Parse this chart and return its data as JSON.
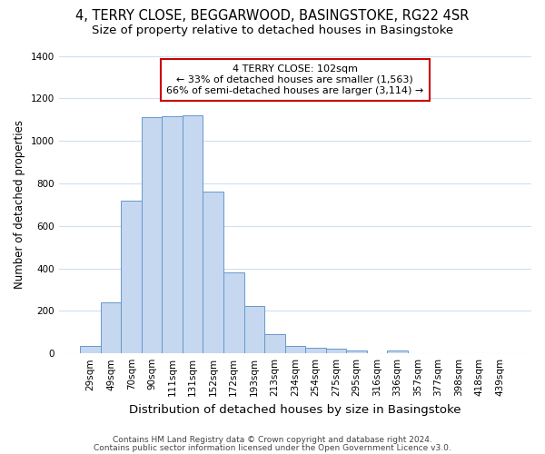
{
  "title1": "4, TERRY CLOSE, BEGGARWOOD, BASINGSTOKE, RG22 4SR",
  "title2": "Size of property relative to detached houses in Basingstoke",
  "xlabel": "Distribution of detached houses by size in Basingstoke",
  "ylabel": "Number of detached properties",
  "footnote1": "Contains HM Land Registry data © Crown copyright and database right 2024.",
  "footnote2": "Contains public sector information licensed under the Open Government Licence v3.0.",
  "annotation_line1": "4 TERRY CLOSE: 102sqm",
  "annotation_line2": "← 33% of detached houses are smaller (1,563)",
  "annotation_line3": "66% of semi-detached houses are larger (3,114) →",
  "bar_color": "#c5d8f0",
  "bar_edge_color": "#6699cc",
  "background_color": "#ffffff",
  "annotation_box_color": "#ffffff",
  "annotation_box_edge": "#cc0000",
  "grid_color": "#d0ddf0",
  "categories": [
    "29sqm",
    "49sqm",
    "70sqm",
    "90sqm",
    "111sqm",
    "131sqm",
    "152sqm",
    "172sqm",
    "193sqm",
    "213sqm",
    "234sqm",
    "254sqm",
    "275sqm",
    "295sqm",
    "316sqm",
    "336sqm",
    "357sqm",
    "377sqm",
    "398sqm",
    "418sqm",
    "439sqm"
  ],
  "values": [
    35,
    240,
    720,
    1110,
    1115,
    1120,
    760,
    380,
    225,
    90,
    37,
    27,
    22,
    14,
    2,
    12,
    0,
    0,
    0,
    0,
    0
  ],
  "ylim": [
    0,
    1400
  ],
  "yticks": [
    0,
    200,
    400,
    600,
    800,
    1000,
    1200,
    1400
  ],
  "title1_fontsize": 10.5,
  "title2_fontsize": 9.5,
  "xlabel_fontsize": 9.5,
  "ylabel_fontsize": 8.5,
  "tick_fontsize": 7.5,
  "annotation_fontsize": 8,
  "footnote_fontsize": 6.5
}
